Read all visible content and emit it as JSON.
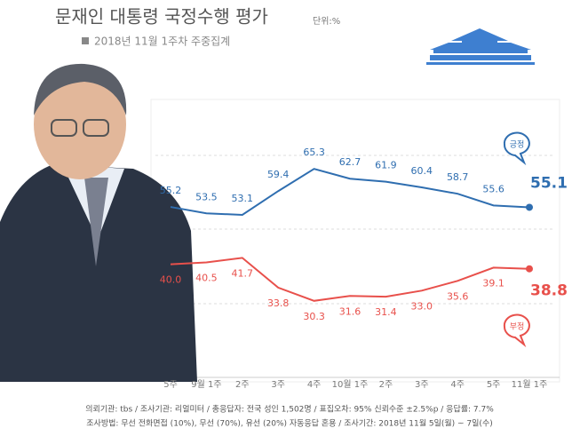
{
  "chart_data": {
    "type": "line",
    "title": "문재인 대통령 국정수행 평가",
    "unit": "단위:%",
    "subtitle": "2018년 11월 1주차 주중집계",
    "categories": [
      "5주",
      "9월 1주",
      "2주",
      "3주",
      "4주",
      "10월 1주",
      "2주",
      "3주",
      "4주",
      "5주",
      "11월 1주"
    ],
    "series": [
      {
        "name": "긍정",
        "color": "#2f6eb0",
        "values": [
          55.2,
          53.5,
          53.1,
          59.4,
          65.3,
          62.7,
          61.9,
          60.4,
          58.7,
          55.6,
          55.1
        ],
        "value_labels": [
          "55.2",
          "53.5",
          "53.1",
          "59.4",
          "65.3",
          "62.7",
          "61.9",
          "60.4",
          "58.7",
          "55.6",
          "55.1"
        ]
      },
      {
        "name": "부정",
        "color": "#e8504b",
        "values": [
          40.0,
          40.5,
          41.7,
          33.8,
          30.3,
          31.6,
          31.4,
          33.0,
          35.6,
          39.1,
          38.8
        ],
        "value_labels": [
          "40.0",
          "40.5",
          "41.7",
          "33.8",
          "30.3",
          "31.6",
          "31.4",
          "33.0",
          "35.6",
          "39.1",
          "38.8"
        ]
      }
    ],
    "ylim": [
      10,
      83
    ],
    "notes": [
      "의뢰기관: tbs / 조사기관: 리얼미터 / 총응답자: 전국 성인 1,502명 / 표집오차: 95% 신뢰수준 ±2.5%p / 응답률: 7.7%",
      "조사방법: 무선 전화면접 (10%), 무선 (70%), 유선 (20%) 자동응답 혼용 / 조사기간: 2018년 11월 5일(월) ~ 7일(수)"
    ]
  }
}
